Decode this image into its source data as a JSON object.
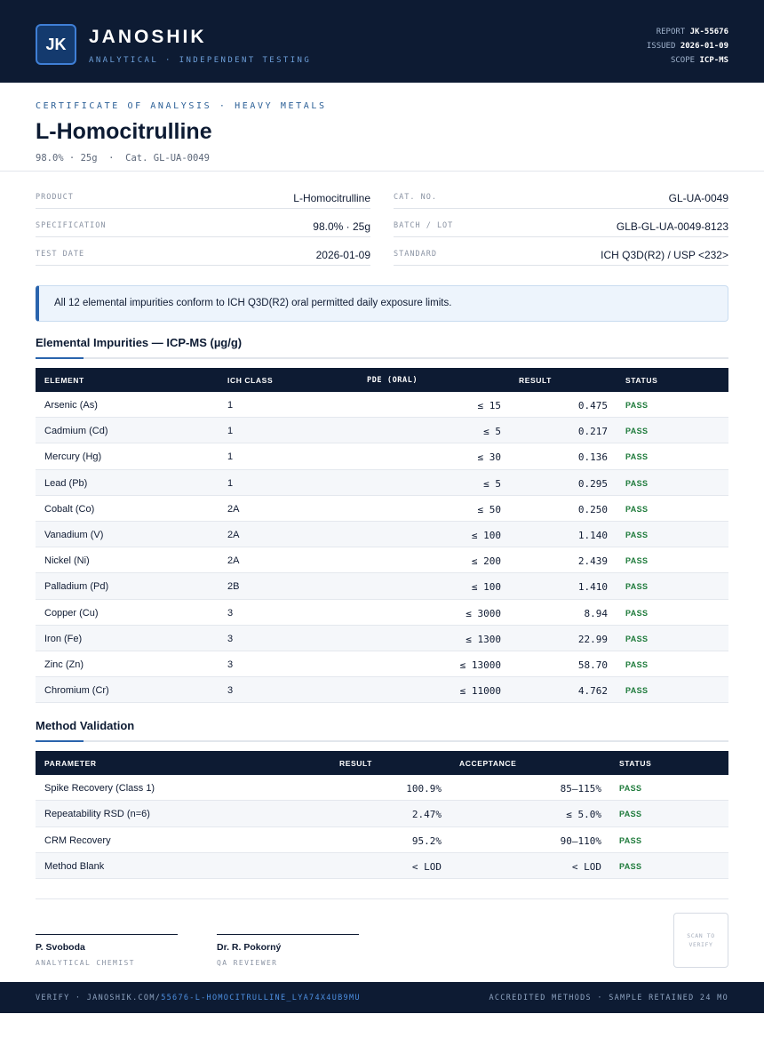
{
  "header": {
    "logo_text": "JK",
    "brand": "JANOSHIK",
    "tagline": "ANALYTICAL · INDEPENDENT TESTING",
    "meta": [
      {
        "label": "REPORT",
        "value": "JK-55676"
      },
      {
        "label": "ISSUED",
        "value": "2026-01-09"
      },
      {
        "label": "SCOPE",
        "value": "ICP-MS"
      }
    ]
  },
  "title_block": {
    "certificate_label": "CERTIFICATE OF ANALYSIS · HEAVY METALS",
    "product_name": "L-Homocitrulline",
    "subline": "98.0% · 25g  ·  Cat. GL-UA-0049"
  },
  "info": [
    {
      "label": "PRODUCT",
      "value": "L-Homocitrulline"
    },
    {
      "label": "CAT. NO.",
      "value": "GL-UA-0049"
    },
    {
      "label": "SPECIFICATION",
      "value": "98.0% · 25g"
    },
    {
      "label": "BATCH / LOT",
      "value": "GLB-GL-UA-0049-8123"
    },
    {
      "label": "TEST DATE",
      "value": "2026-01-09"
    },
    {
      "label": "STANDARD",
      "value": "ICH Q3D(R2) / USP <232>"
    }
  ],
  "notice": "All 12 elemental impurities conform to ICH Q3D(R2) oral permitted daily exposure limits.",
  "impurities": {
    "title": "Elemental Impurities — ICP-MS (µg/g)",
    "columns": [
      "ELEMENT",
      "ICH CLASS",
      "PDE (ORAL)",
      "RESULT",
      "STATUS"
    ],
    "rows": [
      {
        "element": "Arsenic (As)",
        "class": "1",
        "pde": "≤ 15",
        "result": "0.475",
        "status": "PASS"
      },
      {
        "element": "Cadmium (Cd)",
        "class": "1",
        "pde": "≤ 5",
        "result": "0.217",
        "status": "PASS"
      },
      {
        "element": "Mercury (Hg)",
        "class": "1",
        "pde": "≤ 30",
        "result": "0.136",
        "status": "PASS"
      },
      {
        "element": "Lead (Pb)",
        "class": "1",
        "pde": "≤ 5",
        "result": "0.295",
        "status": "PASS"
      },
      {
        "element": "Cobalt (Co)",
        "class": "2A",
        "pde": "≤ 50",
        "result": "0.250",
        "status": "PASS"
      },
      {
        "element": "Vanadium (V)",
        "class": "2A",
        "pde": "≤ 100",
        "result": "1.140",
        "status": "PASS"
      },
      {
        "element": "Nickel (Ni)",
        "class": "2A",
        "pde": "≤ 200",
        "result": "2.439",
        "status": "PASS"
      },
      {
        "element": "Palladium (Pd)",
        "class": "2B",
        "pde": "≤ 100",
        "result": "1.410",
        "status": "PASS"
      },
      {
        "element": "Copper (Cu)",
        "class": "3",
        "pde": "≤ 3000",
        "result": "8.94",
        "status": "PASS"
      },
      {
        "element": "Iron (Fe)",
        "class": "3",
        "pde": "≤ 1300",
        "result": "22.99",
        "status": "PASS"
      },
      {
        "element": "Zinc (Zn)",
        "class": "3",
        "pde": "≤ 13000",
        "result": "58.70",
        "status": "PASS"
      },
      {
        "element": "Chromium (Cr)",
        "class": "3",
        "pde": "≤ 11000",
        "result": "4.762",
        "status": "PASS"
      }
    ]
  },
  "validation": {
    "title": "Method Validation",
    "columns": [
      "PARAMETER",
      "RESULT",
      "ACCEPTANCE",
      "STATUS"
    ],
    "rows": [
      {
        "parameter": "Spike Recovery (Class 1)",
        "result": "100.9%",
        "acceptance": "85–115%",
        "status": "PASS"
      },
      {
        "parameter": "Repeatability RSD (n=6)",
        "result": "2.47%",
        "acceptance": "≤ 5.0%",
        "status": "PASS"
      },
      {
        "parameter": "CRM Recovery",
        "result": "95.2%",
        "acceptance": "90–110%",
        "status": "PASS"
      },
      {
        "parameter": "Method Blank",
        "result": "< LOD",
        "acceptance": "< LOD",
        "status": "PASS"
      }
    ]
  },
  "signatures": [
    {
      "name": "P. Svoboda",
      "role": "ANALYTICAL CHEMIST"
    },
    {
      "name": "Dr. R. Pokorný",
      "role": "QA REVIEWER"
    }
  ],
  "qr_label": "SCAN TO VERIFY",
  "footer": {
    "verify_prefix": "VERIFY · JANOSHIK.COM/",
    "verify_path": "55676-L-HOMOCITRULLINE_LYA74X4UB9MU",
    "right": "ACCREDITED METHODS · SAMPLE RETAINED 24 MO"
  }
}
